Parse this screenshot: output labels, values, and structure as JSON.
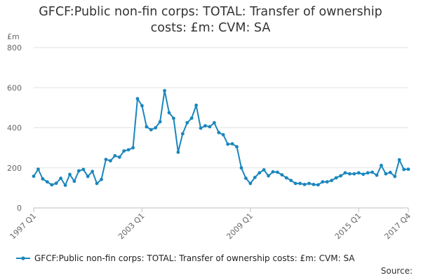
{
  "title_line1": "GFCF:Public non-fin corps: TOTAL: Transfer of ownership",
  "title_line2": "costs: £m: CVM: SA",
  "source_label": "Source:",
  "colors": {
    "series": "#1a86bd",
    "grid": "#e2e2e2",
    "axis": "#bfbfbf",
    "text": "#666666"
  },
  "chart_data": {
    "type": "line",
    "title": "GFCF:Public non-fin corps: TOTAL: Transfer of ownership costs: £m: CVM: SA",
    "ylabel": "£m",
    "ylim": [
      0,
      800
    ],
    "yticks": [
      0,
      200,
      400,
      600,
      800
    ],
    "xticks": [
      {
        "label": "1997 Q1",
        "index": 0
      },
      {
        "label": "2003 Q1",
        "index": 24
      },
      {
        "label": "2009 Q1",
        "index": 48
      },
      {
        "label": "2015 Q1",
        "index": 72
      },
      {
        "label": "2017 Q4",
        "index": 83
      }
    ],
    "grid": true,
    "legend_position": "bottom",
    "series": [
      {
        "name": "GFCF:Public non-fin corps: TOTAL: Transfer of ownership costs: £m: CVM: SA",
        "color": "#1a86bd",
        "x": [
          "1997 Q1",
          "1997 Q2",
          "1997 Q3",
          "1997 Q4",
          "1998 Q1",
          "1998 Q2",
          "1998 Q3",
          "1998 Q4",
          "1999 Q1",
          "1999 Q2",
          "1999 Q3",
          "1999 Q4",
          "2000 Q1",
          "2000 Q2",
          "2000 Q3",
          "2000 Q4",
          "2001 Q1",
          "2001 Q2",
          "2001 Q3",
          "2001 Q4",
          "2002 Q1",
          "2002 Q2",
          "2002 Q3",
          "2002 Q4",
          "2003 Q1",
          "2003 Q2",
          "2003 Q3",
          "2003 Q4",
          "2004 Q1",
          "2004 Q2",
          "2004 Q3",
          "2004 Q4",
          "2005 Q1",
          "2005 Q2",
          "2005 Q3",
          "2005 Q4",
          "2006 Q1",
          "2006 Q2",
          "2006 Q3",
          "2006 Q4",
          "2007 Q1",
          "2007 Q2",
          "2007 Q3",
          "2007 Q4",
          "2008 Q1",
          "2008 Q2",
          "2008 Q3",
          "2008 Q4",
          "2009 Q1",
          "2009 Q2",
          "2009 Q3",
          "2009 Q4",
          "2010 Q1",
          "2010 Q2",
          "2010 Q3",
          "2010 Q4",
          "2011 Q1",
          "2011 Q2",
          "2011 Q3",
          "2011 Q4",
          "2012 Q1",
          "2012 Q2",
          "2012 Q3",
          "2012 Q4",
          "2013 Q1",
          "2013 Q2",
          "2013 Q3",
          "2013 Q4",
          "2014 Q1",
          "2014 Q2",
          "2014 Q3",
          "2014 Q4",
          "2015 Q1",
          "2015 Q2",
          "2015 Q3",
          "2015 Q4",
          "2016 Q1",
          "2016 Q2",
          "2016 Q3",
          "2016 Q4",
          "2017 Q1",
          "2017 Q2",
          "2017 Q3",
          "2017 Q4"
        ],
        "values": [
          158,
          193,
          145,
          130,
          115,
          123,
          148,
          113,
          167,
          133,
          185,
          192,
          157,
          182,
          122,
          142,
          242,
          235,
          260,
          253,
          284,
          290,
          300,
          545,
          510,
          405,
          390,
          400,
          430,
          585,
          475,
          447,
          278,
          370,
          425,
          448,
          512,
          398,
          410,
          405,
          425,
          376,
          365,
          318,
          320,
          305,
          200,
          148,
          122,
          152,
          175,
          190,
          160,
          180,
          178,
          165,
          150,
          137,
          122,
          122,
          117,
          122,
          117,
          115,
          130,
          130,
          137,
          150,
          160,
          175,
          170,
          170,
          175,
          168,
          175,
          178,
          163,
          212,
          170,
          177,
          157,
          240,
          192,
          193
        ]
      }
    ]
  }
}
